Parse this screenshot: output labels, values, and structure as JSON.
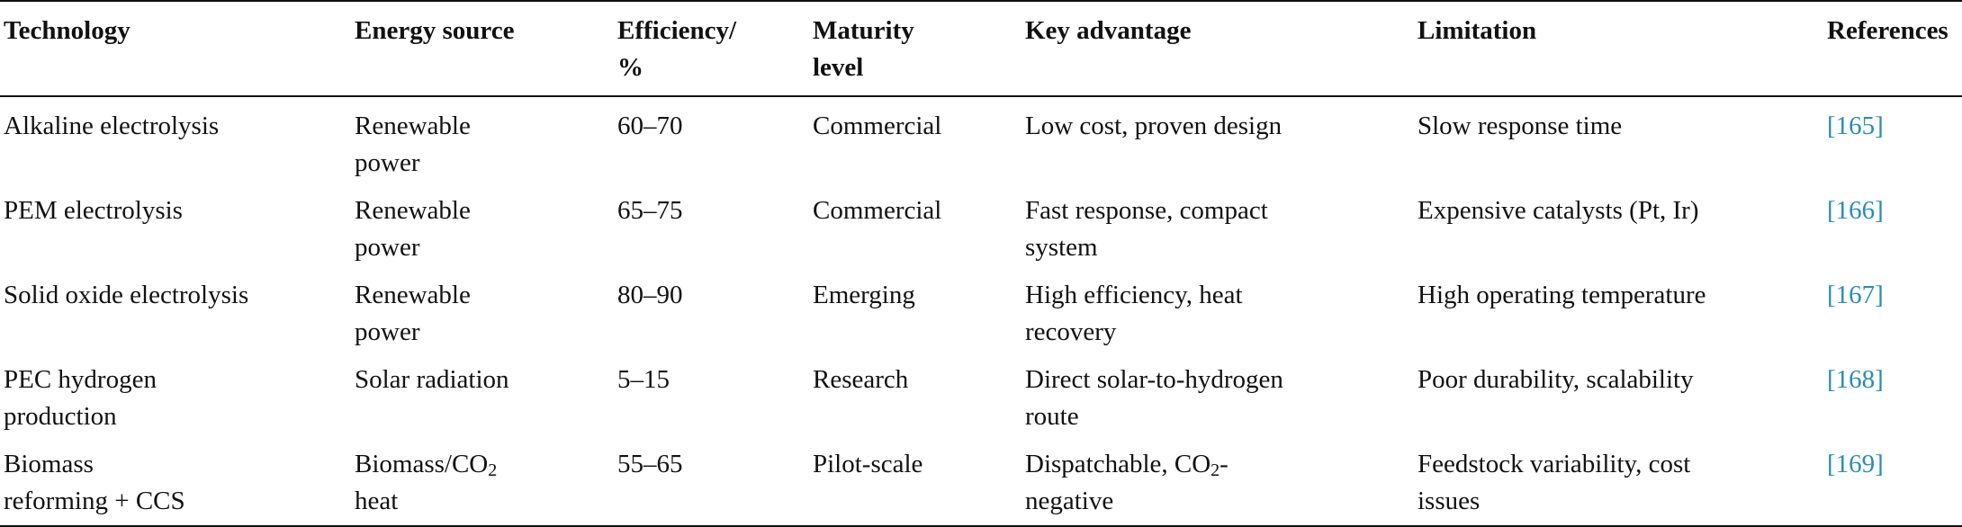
{
  "table": {
    "headers": [
      [
        "Technology"
      ],
      [
        "Energy source"
      ],
      [
        "Efficiency/",
        "%"
      ],
      [
        "Maturity",
        "level"
      ],
      [
        "Key advantage"
      ],
      [
        "Limitation"
      ],
      [
        "References"
      ]
    ],
    "rows": [
      {
        "technology": [
          "Alkaline electrolysis"
        ],
        "energy_source": [
          "Renewable",
          "power"
        ],
        "efficiency": "60–70",
        "maturity": "Commercial",
        "advantage": [
          "Low cost, proven design"
        ],
        "limitation": [
          "Slow response time"
        ],
        "reference": "[165]"
      },
      {
        "technology": [
          "PEM electrolysis"
        ],
        "energy_source": [
          "Renewable",
          "power"
        ],
        "efficiency": "65–75",
        "maturity": "Commercial",
        "advantage": [
          "Fast response, compact",
          "system"
        ],
        "limitation": [
          "Expensive catalysts (Pt, Ir)"
        ],
        "reference": "[166]"
      },
      {
        "technology": [
          "Solid oxide electrolysis"
        ],
        "energy_source": [
          "Renewable",
          "power"
        ],
        "efficiency": "80–90",
        "maturity": "Emerging",
        "advantage": [
          "High efficiency, heat",
          "recovery"
        ],
        "limitation": [
          "High operating temperature"
        ],
        "reference": "[167]"
      },
      {
        "technology": [
          "PEC hydrogen",
          "production"
        ],
        "energy_source": [
          "Solar radiation"
        ],
        "efficiency": "5–15",
        "maturity": "Research",
        "advantage": [
          "Direct solar-to-hydrogen",
          "route"
        ],
        "limitation": [
          "Poor durability, scalability"
        ],
        "reference": "[168]"
      },
      {
        "technology": [
          "Biomass",
          "reforming + CCS"
        ],
        "energy_source": {
          "prefix": "Biomass/CO",
          "sub": "2",
          "line2": "heat"
        },
        "efficiency": "55–65",
        "maturity": "Pilot-scale",
        "advantage": {
          "prefix": "Dispatchable, CO",
          "sub": "2",
          "suffix": "-",
          "line2": "negative"
        },
        "limitation": [
          "Feedstock variability, cost",
          "issues"
        ],
        "reference": "[169]"
      }
    ]
  }
}
